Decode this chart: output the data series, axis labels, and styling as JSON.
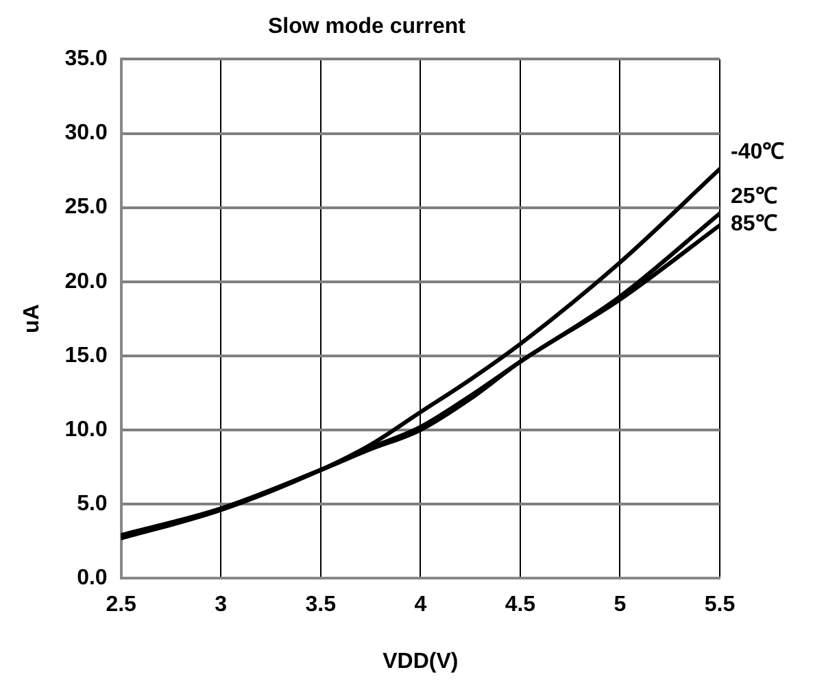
{
  "chart_data": {
    "type": "line",
    "title": "Slow mode current",
    "xlabel": "VDD(V)",
    "ylabel": "uA",
    "x": [
      2.5,
      3,
      3.5,
      3.75,
      4,
      4.25,
      4.5,
      5,
      5.5
    ],
    "series": [
      {
        "name": "-40℃",
        "color": "#000000",
        "values": [
          2.7,
          4.6,
          7.3,
          9.0,
          11.2,
          13.4,
          15.8,
          21.3,
          27.6
        ]
      },
      {
        "name": "25℃",
        "color": "#000000",
        "values": [
          2.9,
          4.7,
          7.3,
          8.8,
          10.2,
          12.3,
          14.6,
          19.0,
          24.6
        ]
      },
      {
        "name": "85℃",
        "color": "#000000",
        "values": [
          2.9,
          4.7,
          7.3,
          8.7,
          10.0,
          12.1,
          14.6,
          18.8,
          23.8
        ]
      }
    ],
    "xlim": [
      2.5,
      5.5
    ],
    "xticks": [
      2.5,
      3,
      3.5,
      4,
      4.5,
      5,
      5.5
    ],
    "ylim": [
      0,
      35
    ],
    "yticks": [
      {
        "value": 0,
        "label": "0.0"
      },
      {
        "value": 5,
        "label": "5.0"
      },
      {
        "value": 10,
        "label": "10.0"
      },
      {
        "value": 15,
        "label": "15.0"
      },
      {
        "value": 20,
        "label": "20.0"
      },
      {
        "value": 25,
        "label": "25.0"
      },
      {
        "value": 30,
        "label": "30.0"
      },
      {
        "value": 35,
        "label": "35.0"
      }
    ],
    "grid": true,
    "legend": false,
    "marker": "none",
    "line_style": "solid"
  }
}
